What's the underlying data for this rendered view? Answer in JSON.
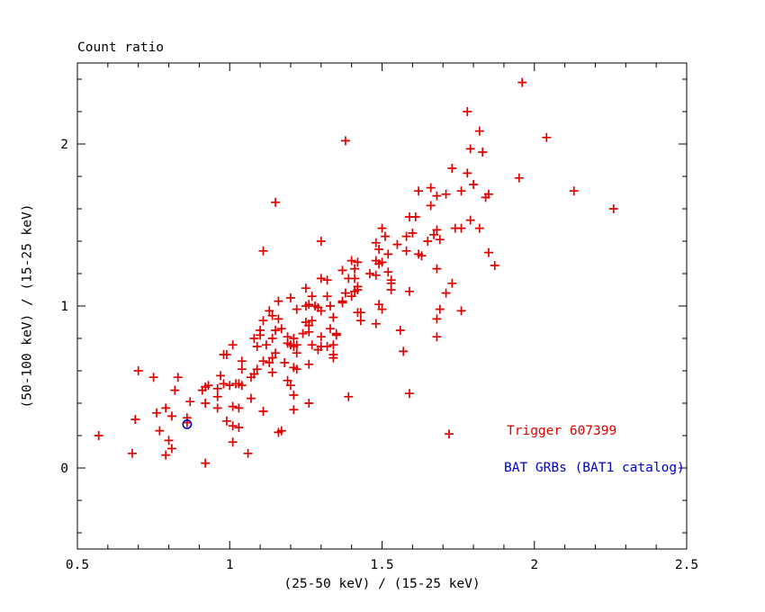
{
  "window": {
    "background": "#ffffff"
  },
  "chart": {
    "title": "Count ratio",
    "xlabel": "(25-50 keV) / (15-25 keV)",
    "ylabel": "(50-100 keV) / (15-25 keV)",
    "legend": [
      {
        "text": "Trigger 607399",
        "color": "#e00000"
      },
      {
        "text": "BAT GRBs (BAT1 catalog)",
        "color": "#0000cc"
      }
    ]
  },
  "chart_data": {
    "type": "scatter",
    "title": "Count ratio",
    "xlabel": "(25-50 keV) / (15-25 keV)",
    "ylabel": "(50-100 keV) / (15-25 keV)",
    "xlim": [
      0.5,
      2.5
    ],
    "ylim": [
      -0.5,
      2.5
    ],
    "grid": false,
    "frame_color": "#000000",
    "axes": {
      "x_major_ticks": [
        0.5,
        1,
        1.5,
        2,
        2.5
      ],
      "x_major_labels": [
        "0.5",
        "1",
        "1.5",
        "2",
        "2.5"
      ],
      "x_minor_ticks": [
        0.6,
        0.7,
        0.8,
        0.9,
        1.1,
        1.2,
        1.3,
        1.4,
        1.6,
        1.7,
        1.8,
        1.9,
        2.1,
        2.2,
        2.3,
        2.4
      ],
      "y_major_ticks": [
        0,
        1,
        2
      ],
      "y_major_labels": [
        "0",
        "1",
        "2"
      ],
      "y_minor_ticks": [
        -0.4,
        -0.2,
        0.2,
        0.4,
        0.6,
        0.8,
        1.2,
        1.4,
        1.6,
        1.8,
        2.2,
        2.4
      ]
    },
    "series": [
      {
        "name": "red-plus-points",
        "legend_text": "Trigger 607399",
        "marker": "plus",
        "color": "#e00000",
        "points": [
          [
            1.15,
            1.64
          ],
          [
            1.11,
            1.34
          ],
          [
            1.78,
            2.2
          ],
          [
            1.82,
            2.08
          ],
          [
            1.38,
            2.02
          ],
          [
            1.79,
            1.97
          ],
          [
            1.83,
            1.95
          ],
          [
            1.73,
            1.85
          ],
          [
            1.78,
            1.82
          ],
          [
            1.8,
            1.75
          ],
          [
            1.62,
            1.71
          ],
          [
            1.66,
            1.73
          ],
          [
            1.68,
            1.68
          ],
          [
            1.71,
            1.69
          ],
          [
            1.76,
            1.71
          ],
          [
            1.66,
            1.62
          ],
          [
            1.59,
            1.55
          ],
          [
            1.61,
            1.55
          ],
          [
            1.79,
            1.53
          ],
          [
            1.5,
            1.48
          ],
          [
            1.68,
            1.47
          ],
          [
            1.74,
            1.48
          ],
          [
            1.76,
            1.48
          ],
          [
            1.82,
            1.48
          ],
          [
            1.51,
            1.43
          ],
          [
            1.58,
            1.43
          ],
          [
            1.6,
            1.45
          ],
          [
            1.65,
            1.4
          ],
          [
            1.67,
            1.44
          ],
          [
            1.69,
            1.41
          ],
          [
            1.3,
            1.4
          ],
          [
            1.48,
            1.39
          ],
          [
            1.55,
            1.38
          ],
          [
            1.49,
            1.35
          ],
          [
            1.52,
            1.32
          ],
          [
            1.58,
            1.34
          ],
          [
            1.62,
            1.32
          ],
          [
            1.63,
            1.31
          ],
          [
            1.48,
            1.28
          ],
          [
            1.4,
            1.28
          ],
          [
            1.42,
            1.27
          ],
          [
            1.5,
            1.27
          ],
          [
            1.49,
            1.26
          ],
          [
            1.96,
            2.38
          ],
          [
            2.04,
            2.04
          ],
          [
            1.95,
            1.79
          ],
          [
            2.13,
            1.71
          ],
          [
            1.84,
            1.67
          ],
          [
            1.85,
            1.69
          ],
          [
            2.26,
            1.6
          ],
          [
            1.85,
            1.33
          ],
          [
            1.87,
            1.25
          ],
          [
            1.16,
            1.03
          ],
          [
            1.13,
            0.97
          ],
          [
            1.14,
            0.94
          ],
          [
            1.11,
            0.91
          ],
          [
            1.16,
            0.92
          ],
          [
            1.15,
            0.85
          ],
          [
            1.1,
            0.85
          ],
          [
            1.08,
            0.8
          ],
          [
            1.1,
            0.82
          ],
          [
            1.14,
            0.8
          ],
          [
            1.12,
            0.76
          ],
          [
            1.01,
            0.76
          ],
          [
            1.09,
            0.75
          ],
          [
            1.15,
            0.71
          ],
          [
            0.98,
            0.7
          ],
          [
            0.99,
            0.7
          ],
          [
            1.04,
            0.66
          ],
          [
            1.14,
            0.68
          ],
          [
            1.11,
            0.66
          ],
          [
            1.13,
            0.65
          ],
          [
            1.04,
            0.61
          ],
          [
            1.07,
            0.56
          ],
          [
            1.08,
            0.58
          ],
          [
            1.09,
            0.61
          ],
          [
            1.14,
            0.59
          ],
          [
            0.7,
            0.6
          ],
          [
            0.75,
            0.56
          ],
          [
            0.83,
            0.56
          ],
          [
            0.97,
            0.57
          ],
          [
            0.98,
            0.52
          ],
          [
            1.0,
            0.51
          ],
          [
            1.02,
            0.52
          ],
          [
            1.03,
            0.52
          ],
          [
            0.92,
            0.5
          ],
          [
            0.93,
            0.51
          ],
          [
            0.96,
            0.49
          ],
          [
            0.91,
            0.48
          ],
          [
            0.82,
            0.48
          ],
          [
            0.96,
            0.44
          ],
          [
            0.92,
            0.4
          ],
          [
            1.04,
            0.51
          ],
          [
            0.87,
            0.41
          ],
          [
            1.07,
            0.43
          ],
          [
            0.96,
            0.37
          ],
          [
            0.76,
            0.34
          ],
          [
            0.79,
            0.37
          ],
          [
            1.01,
            0.38
          ],
          [
            1.03,
            0.37
          ],
          [
            1.11,
            0.35
          ],
          [
            0.81,
            0.32
          ],
          [
            0.86,
            0.31
          ],
          [
            0.69,
            0.3
          ],
          [
            0.86,
            0.28
          ],
          [
            0.99,
            0.29
          ],
          [
            1.16,
            0.22
          ],
          [
            0.57,
            0.2
          ],
          [
            0.77,
            0.23
          ],
          [
            1.01,
            0.26
          ],
          [
            1.03,
            0.25
          ],
          [
            0.8,
            0.17
          ],
          [
            0.81,
            0.12
          ],
          [
            1.01,
            0.16
          ],
          [
            0.68,
            0.09
          ],
          [
            0.79,
            0.08
          ],
          [
            1.06,
            0.09
          ],
          [
            0.92,
            0.03
          ],
          [
            1.37,
            1.22
          ],
          [
            1.41,
            1.23
          ],
          [
            1.46,
            1.2
          ],
          [
            1.48,
            1.19
          ],
          [
            1.52,
            1.21
          ],
          [
            1.3,
            1.17
          ],
          [
            1.32,
            1.16
          ],
          [
            1.39,
            1.17
          ],
          [
            1.41,
            1.17
          ],
          [
            1.53,
            1.16
          ],
          [
            1.53,
            1.14
          ],
          [
            1.68,
            1.23
          ],
          [
            1.25,
            1.11
          ],
          [
            1.42,
            1.12
          ],
          [
            1.42,
            1.1
          ],
          [
            1.41,
            1.09
          ],
          [
            1.53,
            1.1
          ],
          [
            1.59,
            1.09
          ],
          [
            1.71,
            1.08
          ],
          [
            1.73,
            1.14
          ],
          [
            1.2,
            1.05
          ],
          [
            1.27,
            1.06
          ],
          [
            1.32,
            1.06
          ],
          [
            1.38,
            1.08
          ],
          [
            1.4,
            1.06
          ],
          [
            1.37,
            1.02
          ],
          [
            1.37,
            1.03
          ],
          [
            1.22,
            0.98
          ],
          [
            1.25,
            1.0
          ],
          [
            1.26,
            1.01
          ],
          [
            1.28,
            1.0
          ],
          [
            1.29,
            0.99
          ],
          [
            1.3,
            0.97
          ],
          [
            1.33,
            1.0
          ],
          [
            1.49,
            1.01
          ],
          [
            1.5,
            0.98
          ],
          [
            1.42,
            0.96
          ],
          [
            1.43,
            0.96
          ],
          [
            1.43,
            0.91
          ],
          [
            1.34,
            0.93
          ],
          [
            1.69,
            0.98
          ],
          [
            1.76,
            0.97
          ],
          [
            1.68,
            0.92
          ],
          [
            1.48,
            0.89
          ],
          [
            1.25,
            0.9
          ],
          [
            1.26,
            0.88
          ],
          [
            1.27,
            0.91
          ],
          [
            1.17,
            0.86
          ],
          [
            1.24,
            0.83
          ],
          [
            1.26,
            0.84
          ],
          [
            1.33,
            0.86
          ],
          [
            1.35,
            0.83
          ],
          [
            1.35,
            0.82
          ],
          [
            1.56,
            0.85
          ],
          [
            1.68,
            0.81
          ],
          [
            1.19,
            0.81
          ],
          [
            1.21,
            0.8
          ],
          [
            1.3,
            0.81
          ],
          [
            1.19,
            0.77
          ],
          [
            1.2,
            0.76
          ],
          [
            1.21,
            0.75
          ],
          [
            1.22,
            0.76
          ],
          [
            1.27,
            0.76
          ],
          [
            1.3,
            0.75
          ],
          [
            1.32,
            0.75
          ],
          [
            1.34,
            0.76
          ],
          [
            1.22,
            0.71
          ],
          [
            1.29,
            0.73
          ],
          [
            1.34,
            0.7
          ],
          [
            1.34,
            0.68
          ],
          [
            1.57,
            0.72
          ],
          [
            1.18,
            0.65
          ],
          [
            1.21,
            0.62
          ],
          [
            1.22,
            0.61
          ],
          [
            1.26,
            0.64
          ],
          [
            1.19,
            0.54
          ],
          [
            1.2,
            0.51
          ],
          [
            1.21,
            0.45
          ],
          [
            1.26,
            0.4
          ],
          [
            1.21,
            0.36
          ],
          [
            1.39,
            0.44
          ],
          [
            1.59,
            0.46
          ],
          [
            1.72,
            0.21
          ],
          [
            1.17,
            0.23
          ]
        ]
      },
      {
        "name": "blue-circle-point",
        "legend_text": "BAT GRBs (BAT1 catalog)",
        "marker": "circle",
        "color": "#0000cc",
        "points": [
          [
            0.86,
            0.27
          ]
        ]
      }
    ]
  }
}
